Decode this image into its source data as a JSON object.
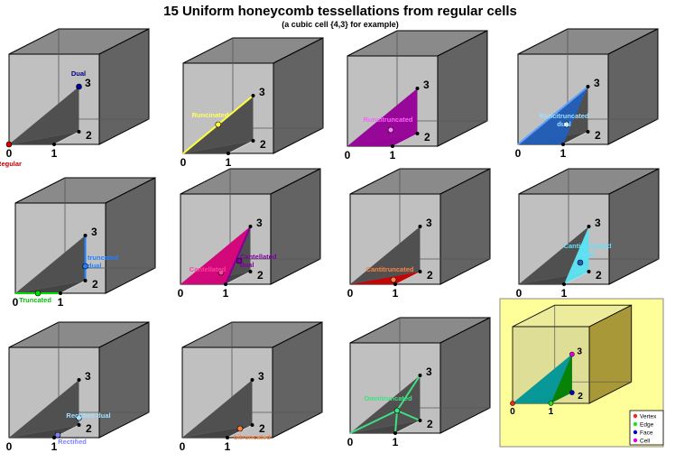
{
  "header": {
    "title": "15 Uniform honeycomb tessellations from regular cells",
    "subtitle": "(a cubic cell {4,3} for example)"
  },
  "panels": [
    {
      "vertices": [
        "0",
        "1",
        "2",
        "3"
      ],
      "labels": [
        {
          "lines": [
            "Dual"
          ]
        },
        {
          "lines": [
            "Regular"
          ]
        }
      ]
    },
    {
      "vertices": [
        "0",
        "1",
        "2",
        "3"
      ],
      "labels": [
        {
          "lines": [
            "Runcinated"
          ]
        }
      ]
    },
    {
      "vertices": [
        "0",
        "1",
        "2",
        "3"
      ],
      "labels": [
        {
          "lines": [
            "Runcitruncated"
          ]
        }
      ]
    },
    {
      "vertices": [
        "0",
        "1",
        "2",
        "3"
      ],
      "labels": [
        {
          "lines": [
            "Runcitruncated",
            "dual"
          ]
        }
      ]
    },
    {
      "vertices": [
        "0",
        "1",
        "2",
        "3"
      ],
      "labels": [
        {
          "lines": [
            "truncated",
            "dual"
          ]
        },
        {
          "lines": [
            "Truncated"
          ]
        }
      ]
    },
    {
      "vertices": [
        "0",
        "1",
        "2",
        "3"
      ],
      "labels": [
        {
          "lines": [
            "Cantellated"
          ]
        },
        {
          "lines": [
            "Cantellated",
            "dual"
          ]
        }
      ]
    },
    {
      "vertices": [
        "0",
        "1",
        "2",
        "3"
      ],
      "labels": [
        {
          "lines": [
            "Cantitruncated"
          ]
        }
      ]
    },
    {
      "vertices": [
        "0",
        "1",
        "2",
        "3"
      ],
      "labels": [
        {
          "lines": [
            "Cantitruncated",
            "dual"
          ]
        }
      ]
    },
    {
      "vertices": [
        "0",
        "1",
        "2",
        "3"
      ],
      "labels": [
        {
          "lines": [
            "Rectified dual"
          ]
        },
        {
          "lines": [
            "Rectified"
          ]
        }
      ]
    },
    {
      "vertices": [
        "0",
        "1",
        "2",
        "3"
      ],
      "labels": [
        {
          "lines": [
            "bitruncated"
          ]
        }
      ]
    },
    {
      "vertices": [
        "0",
        "1",
        "2",
        "3"
      ],
      "labels": [
        {
          "lines": [
            "Omnitruncated"
          ]
        }
      ]
    },
    {
      "vertices": [
        "0",
        "1",
        "2",
        "3"
      ],
      "labels": []
    }
  ],
  "legend": [
    "Vertex",
    "Edge",
    "Face",
    "Cell"
  ]
}
